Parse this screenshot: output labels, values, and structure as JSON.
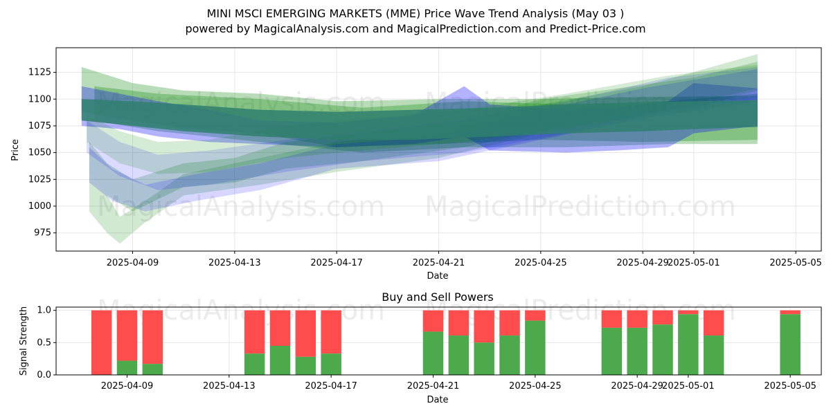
{
  "chart_data": [
    {
      "type": "area",
      "title": "MINI MSCI EMERGING MARKETS (MME) Price Wave Trend Analysis (May 03 )",
      "subtitle": "powered by MagicalAnalysis.com and MagicalPrediction.com and Predict-Price.com",
      "xlabel": "Date",
      "ylabel": "Price",
      "xlim": [
        "2025-04-06",
        "2025-05-06"
      ],
      "ylim": [
        958,
        1148
      ],
      "x_ticks": [
        "2025-04-09",
        "2025-04-13",
        "2025-04-17",
        "2025-04-21",
        "2025-04-25",
        "2025-04-29",
        "2025-05-01",
        "2025-05-05"
      ],
      "y_ticks": [
        975,
        1000,
        1025,
        1050,
        1075,
        1100,
        1125
      ],
      "watermarks": [
        "MagicalAnalysis.com",
        "MagicalPrediction.com"
      ],
      "bands": [
        {
          "color": "#008000",
          "opacity": 0.28,
          "points": [
            [
              7.0,
              1130,
              1088
            ],
            [
              9.0,
              1115,
              1080
            ],
            [
              11.0,
              1108,
              1073
            ],
            [
              14.0,
              1105,
              1068
            ],
            [
              17.0,
              1098,
              1055
            ],
            [
              21.0,
              1100,
              1058
            ],
            [
              25.0,
              1100,
              1062
            ],
            [
              29.0,
              1102,
              1060
            ],
            [
              33.5,
              1103,
              1062
            ]
          ]
        },
        {
          "color": "#008000",
          "opacity": 0.28,
          "points": [
            [
              7.5,
              1112,
              1080
            ],
            [
              10.0,
              1105,
              1070
            ],
            [
              14.0,
              1100,
              1060
            ],
            [
              18.0,
              1092,
              1050
            ],
            [
              22.0,
              1098,
              1055
            ],
            [
              26.0,
              1095,
              1055
            ],
            [
              30.0,
              1098,
              1058
            ],
            [
              33.5,
              1105,
              1058
            ]
          ]
        },
        {
          "color": "#0000ff",
          "opacity": 0.3,
          "points": [
            [
              7.0,
              1112,
              1075
            ],
            [
              8.5,
              1105,
              1072
            ],
            [
              10.0,
              1098,
              1065
            ],
            [
              12.0,
              1090,
              1060
            ],
            [
              14.0,
              1080,
              1058
            ],
            [
              17.0,
              1078,
              1055
            ],
            [
              20.0,
              1085,
              1058
            ],
            [
              22.0,
              1112,
              1065
            ],
            [
              23.0,
              1095,
              1052
            ],
            [
              26.0,
              1090,
              1050
            ],
            [
              28.0,
              1092,
              1052
            ],
            [
              30.0,
              1098,
              1055
            ],
            [
              31.0,
              1115,
              1068
            ],
            [
              33.5,
              1110,
              1075
            ]
          ]
        },
        {
          "color": "#008000",
          "opacity": 0.2,
          "points": [
            [
              7.3,
              1060,
              1030
            ],
            [
              8.0,
              1040,
              1010
            ],
            [
              9.0,
              1025,
              995
            ],
            [
              11.0,
              1040,
              1018
            ],
            [
              13.0,
              1045,
              1022
            ],
            [
              15.0,
              1060,
              1035
            ],
            [
              18.0,
              1068,
              1042
            ],
            [
              22.0,
              1080,
              1055
            ],
            [
              25.0,
              1100,
              1070
            ],
            [
              28.0,
              1110,
              1080
            ],
            [
              31.0,
              1120,
              1092
            ],
            [
              33.5,
              1135,
              1108
            ]
          ]
        },
        {
          "color": "#008000",
          "opacity": 0.18,
          "points": [
            [
              7.3,
              1030,
              995
            ],
            [
              8.0,
              1010,
              975
            ],
            [
              8.5,
              990,
              965
            ],
            [
              9.5,
              1005,
              985
            ],
            [
              11.0,
              1030,
              1010
            ],
            [
              14.0,
              1045,
              1020
            ],
            [
              17.0,
              1060,
              1032
            ],
            [
              21.0,
              1070,
              1045
            ],
            [
              25.0,
              1095,
              1068
            ],
            [
              29.0,
              1112,
              1085
            ],
            [
              33.5,
              1142,
              1110
            ]
          ]
        },
        {
          "color": "#0000ff",
          "opacity": 0.16,
          "points": [
            [
              7.3,
              1055,
              1022
            ],
            [
              8.2,
              1035,
              1005
            ],
            [
              9.5,
              1020,
              995
            ],
            [
              11.5,
              1030,
              1005
            ],
            [
              14.0,
              1040,
              1015
            ],
            [
              17.0,
              1058,
              1035
            ],
            [
              21.0,
              1065,
              1042
            ],
            [
              25.0,
              1090,
              1062
            ],
            [
              29.0,
              1110,
              1082
            ],
            [
              33.5,
              1128,
              1098
            ]
          ]
        },
        {
          "color": "#0000ff",
          "opacity": 0.14,
          "points": [
            [
              7.2,
              1080,
              1050
            ],
            [
              8.5,
              1060,
              1028
            ],
            [
              10.0,
              1048,
              1015
            ],
            [
              12.0,
              1052,
              1020
            ],
            [
              15.0,
              1062,
              1032
            ],
            [
              18.0,
              1070,
              1042
            ],
            [
              22.0,
              1082,
              1050
            ],
            [
              26.0,
              1098,
              1068
            ],
            [
              30.0,
              1120,
              1090
            ],
            [
              33.5,
              1130,
              1100
            ]
          ]
        },
        {
          "color": "#008000",
          "opacity": 0.16,
          "points": [
            [
              7.2,
              1085,
              1060
            ],
            [
              8.5,
              1070,
              1040
            ],
            [
              10.0,
              1060,
              1030
            ],
            [
              12.0,
              1062,
              1032
            ],
            [
              15.0,
              1075,
              1045
            ],
            [
              18.0,
              1082,
              1052
            ],
            [
              22.0,
              1090,
              1060
            ],
            [
              26.0,
              1105,
              1075
            ],
            [
              30.0,
              1122,
              1092
            ],
            [
              33.5,
              1132,
              1102
            ]
          ]
        }
      ],
      "main_band": {
        "color": "#2f7f6f",
        "opacity": 0.85,
        "points": [
          [
            7.0,
            1100,
            1080
          ],
          [
            9.0,
            1098,
            1075
          ],
          [
            11.0,
            1095,
            1070
          ],
          [
            14.0,
            1090,
            1065
          ],
          [
            17.0,
            1088,
            1062
          ],
          [
            20.0,
            1090,
            1062
          ],
          [
            23.0,
            1092,
            1065
          ],
          [
            26.0,
            1095,
            1068
          ],
          [
            29.0,
            1097,
            1070
          ],
          [
            31.0,
            1098,
            1072
          ],
          [
            33.5,
            1099,
            1074
          ]
        ]
      }
    },
    {
      "type": "bar",
      "title": "Buy and Sell Powers",
      "xlabel": "Date",
      "ylabel": "Signal Strength",
      "xlim": [
        "2025-04-06",
        "2025-05-06"
      ],
      "ylim": [
        0,
        1.05
      ],
      "x_ticks": [
        "2025-04-09",
        "2025-04-13",
        "2025-04-17",
        "2025-04-21",
        "2025-04-25",
        "2025-04-29",
        "2025-05-01",
        "2025-05-05"
      ],
      "y_ticks": [
        0.0,
        0.5,
        1.0
      ],
      "buy_color": "#4caa4c",
      "sell_color": "#ff4d4d",
      "bars": [
        {
          "date": "2025-04-08",
          "buy": 0.0
        },
        {
          "date": "2025-04-09",
          "buy": 0.22
        },
        {
          "date": "2025-04-10",
          "buy": 0.17
        },
        {
          "date": "2025-04-14",
          "buy": 0.33
        },
        {
          "date": "2025-04-15",
          "buy": 0.45
        },
        {
          "date": "2025-04-16",
          "buy": 0.28
        },
        {
          "date": "2025-04-17",
          "buy": 0.33
        },
        {
          "date": "2025-04-21",
          "buy": 0.67
        },
        {
          "date": "2025-04-22",
          "buy": 0.61
        },
        {
          "date": "2025-04-23",
          "buy": 0.5
        },
        {
          "date": "2025-04-24",
          "buy": 0.61
        },
        {
          "date": "2025-04-25",
          "buy": 0.84
        },
        {
          "date": "2025-04-28",
          "buy": 0.73
        },
        {
          "date": "2025-04-29",
          "buy": 0.73
        },
        {
          "date": "2025-04-30",
          "buy": 0.78
        },
        {
          "date": "2025-05-01",
          "buy": 0.94
        },
        {
          "date": "2025-05-02",
          "buy": 0.61
        },
        {
          "date": "2025-05-05",
          "buy": 0.94
        }
      ]
    }
  ]
}
